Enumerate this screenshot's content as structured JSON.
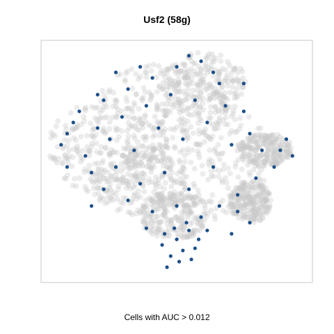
{
  "chart_data": {
    "type": "scatter",
    "title": "Usf2 (58g)",
    "xlabel": "Cells with AUC > 0.012",
    "ylabel": "",
    "grid": false,
    "legend": "none",
    "colors": {
      "background_cells": "#c8c8c8",
      "high_auc_cells": "#1c4f8a",
      "frame": "#c8c8c8"
    },
    "series": [
      {
        "points": [
          [
            -0.95,
            0.15
          ],
          [
            -0.9,
            0.25
          ],
          [
            -0.85,
            0.35
          ],
          [
            -0.8,
            0.45
          ],
          [
            -0.75,
            0.05
          ],
          [
            -0.7,
            -0.1
          ],
          [
            -0.65,
            0.3
          ],
          [
            -0.6,
            0.55
          ],
          [
            -0.55,
            0.2
          ],
          [
            -0.5,
            -0.05
          ],
          [
            -0.45,
            0.4
          ],
          [
            -0.4,
            0.65
          ],
          [
            -0.35,
            0.1
          ],
          [
            -0.3,
            -0.2
          ],
          [
            -0.25,
            0.5
          ],
          [
            -0.2,
            0.75
          ],
          [
            -0.15,
            0.3
          ],
          [
            -0.1,
            -0.1
          ],
          [
            -0.05,
            0.6
          ],
          [
            0.0,
            0.85
          ],
          [
            0.05,
            0.2
          ],
          [
            0.1,
            -0.25
          ],
          [
            0.15,
            0.55
          ],
          [
            0.2,
            0.9
          ],
          [
            0.25,
            0.35
          ],
          [
            0.3,
            -0.05
          ],
          [
            0.35,
            0.7
          ],
          [
            0.4,
            0.5
          ],
          [
            0.45,
            0.15
          ],
          [
            0.5,
            -0.3
          ],
          [
            0.55,
            0.45
          ],
          [
            0.6,
            0.25
          ],
          [
            0.65,
            -0.15
          ],
          [
            0.7,
            0.1
          ],
          [
            -0.6,
            -0.25
          ],
          [
            -0.4,
            -0.35
          ],
          [
            -0.2,
            -0.45
          ],
          [
            0.0,
            -0.4
          ],
          [
            0.2,
            -0.5
          ],
          [
            0.35,
            -0.4
          ],
          [
            -0.1,
            -0.65
          ],
          [
            0.0,
            -0.7
          ],
          [
            0.1,
            -0.62
          ],
          [
            0.05,
            -0.8
          ],
          [
            -0.05,
            -0.85
          ],
          [
            0.15,
            -0.78
          ],
          [
            -0.12,
            -0.75
          ],
          [
            0.02,
            -0.9
          ],
          [
            0.12,
            -0.88
          ],
          [
            -0.08,
            -0.95
          ],
          [
            0.85,
            0.1
          ],
          [
            0.9,
            0.2
          ],
          [
            0.95,
            0.05
          ],
          [
            0.8,
            -0.05
          ],
          [
            0.5,
            -0.45
          ],
          [
            0.6,
            -0.55
          ],
          [
            0.45,
            -0.65
          ],
          [
            -0.3,
            0.85
          ],
          [
            0.1,
            0.95
          ],
          [
            -0.5,
            0.8
          ],
          [
            0.3,
            0.8
          ],
          [
            0.55,
            0.7
          ],
          [
            -0.65,
            0.6
          ],
          [
            -0.9,
            -0.05
          ],
          [
            -0.7,
            -0.4
          ],
          [
            0.25,
            -0.62
          ],
          [
            -0.25,
            -0.6
          ],
          [
            0.08,
            -0.55
          ],
          [
            -0.02,
            -0.6
          ],
          [
            0.18,
            -0.7
          ]
        ]
      }
    ]
  }
}
